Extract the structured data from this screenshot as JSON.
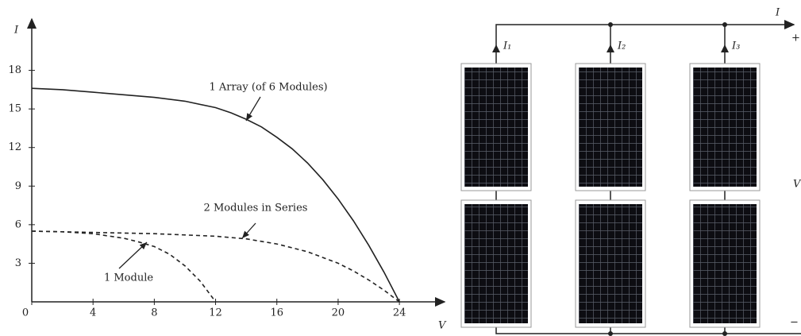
{
  "chart_data": {
    "type": "line",
    "x_label": "V",
    "y_label": "I",
    "xlim": [
      0,
      27
    ],
    "ylim": [
      0,
      21
    ],
    "xticks": [
      0,
      4,
      8,
      12,
      16,
      20,
      24
    ],
    "yticks": [
      3,
      6,
      9,
      12,
      15,
      18
    ],
    "series": [
      {
        "name": "1 Array (of 6 Modules)",
        "color": "#222222",
        "style": "solid",
        "x": [
          0,
          2,
          4,
          6,
          8,
          10,
          12,
          13,
          14,
          15,
          16,
          17,
          18,
          19,
          20,
          21,
          22,
          23,
          24
        ],
        "values": [
          16.6,
          16.5,
          16.3,
          16.1,
          15.9,
          15.6,
          15.1,
          14.7,
          14.2,
          13.6,
          12.8,
          11.9,
          10.8,
          9.5,
          8.0,
          6.3,
          4.4,
          2.3,
          0
        ]
      },
      {
        "name": "2 Modules in Series",
        "color": "#222222",
        "style": "dashed",
        "x": [
          0,
          4,
          8,
          12,
          14,
          16,
          18,
          20,
          21,
          22,
          23,
          24
        ],
        "values": [
          5.5,
          5.4,
          5.3,
          5.1,
          4.9,
          4.5,
          3.9,
          3.0,
          2.4,
          1.7,
          0.9,
          0
        ]
      },
      {
        "name": "1 Module",
        "color": "#222222",
        "style": "dashed",
        "x": [
          0,
          2,
          4,
          6,
          7,
          8,
          9,
          10,
          11,
          12
        ],
        "values": [
          5.5,
          5.45,
          5.3,
          4.95,
          4.65,
          4.3,
          3.7,
          2.8,
          1.6,
          0
        ]
      }
    ]
  },
  "diagram": {
    "current_total": "I",
    "branch_currents": [
      "I₁",
      "I₂",
      "I₃"
    ],
    "plus": "+",
    "voltage": "V",
    "minus": "−"
  }
}
